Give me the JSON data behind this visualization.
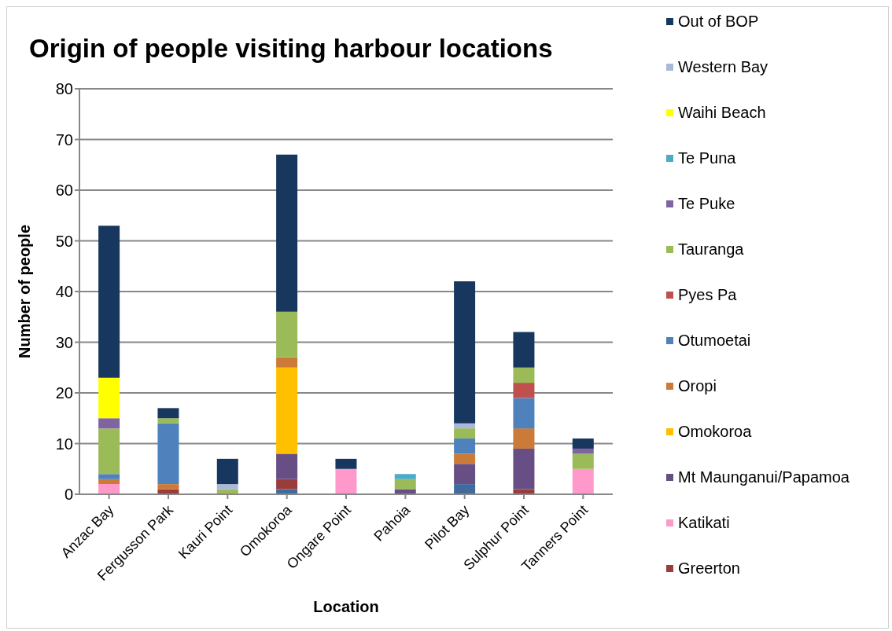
{
  "chart_data": {
    "type": "bar",
    "stacked": true,
    "title": "Origin of people visiting harbour locations",
    "xlabel": "Location",
    "ylabel": "Number of people",
    "categories": [
      "Anzac Bay",
      "Fergusson Park",
      "Kauri Point",
      "Omokoroa",
      "Ongare Point",
      "Pahoia",
      "Pilot Bay",
      "Sulphur Point",
      "Tanners Point"
    ],
    "series": [
      {
        "color": "#3f6b9f",
        "values": [
          0,
          0,
          0,
          1,
          0,
          0,
          2,
          0,
          0
        ]
      },
      {
        "name": "Greerton",
        "color": "#9b3c3c",
        "values": [
          0,
          1,
          0,
          2,
          0,
          0,
          0,
          1,
          0
        ]
      },
      {
        "name": "Katikati",
        "color": "#ff99cc",
        "values": [
          2,
          0,
          0,
          0,
          5,
          0,
          0,
          0,
          5
        ]
      },
      {
        "name": "Mt Maunganui/Papamoa",
        "color": "#674f85",
        "values": [
          0,
          0,
          0,
          5,
          0,
          1,
          4,
          8,
          0
        ]
      },
      {
        "name": "Omokoroa",
        "color": "#ffc000",
        "values": [
          0,
          0,
          0,
          17,
          0,
          0,
          0,
          0,
          0
        ]
      },
      {
        "name": "Oropi",
        "color": "#cc7a38",
        "values": [
          1,
          1,
          0,
          2,
          0,
          0,
          2,
          4,
          0
        ]
      },
      {
        "name": "Otumoetai",
        "color": "#4f81bd",
        "values": [
          1,
          12,
          0,
          0,
          0,
          0,
          3,
          6,
          0
        ]
      },
      {
        "name": "Pyes Pa",
        "color": "#c0504d",
        "values": [
          0,
          0,
          0,
          0,
          0,
          0,
          0,
          3,
          0
        ]
      },
      {
        "name": "Tauranga",
        "color": "#9bbb59",
        "values": [
          9,
          1,
          1,
          9,
          0,
          2,
          2,
          3,
          3
        ]
      },
      {
        "name": "Te Puke",
        "color": "#8064a2",
        "values": [
          2,
          0,
          0,
          0,
          0,
          0,
          0,
          0,
          1
        ]
      },
      {
        "name": "Te Puna",
        "color": "#4bacc6",
        "values": [
          0,
          0,
          0,
          0,
          0,
          1,
          0,
          0,
          0
        ]
      },
      {
        "name": "Waihi Beach",
        "color": "#ffff00",
        "values": [
          8,
          0,
          0,
          0,
          0,
          0,
          0,
          0,
          0
        ]
      },
      {
        "name": "Western Bay",
        "color": "#aab9d8",
        "values": [
          0,
          0,
          1,
          0,
          0,
          0,
          1,
          0,
          0
        ]
      },
      {
        "name": "Out of BOP",
        "color": "#17375e",
        "values": [
          30,
          2,
          5,
          31,
          2,
          0,
          28,
          7,
          2
        ]
      }
    ],
    "ylim": [
      0,
      80
    ],
    "yticks": [
      0,
      10,
      20,
      30,
      40,
      50,
      60,
      70,
      80
    ],
    "grid": "y",
    "legend": "right"
  }
}
